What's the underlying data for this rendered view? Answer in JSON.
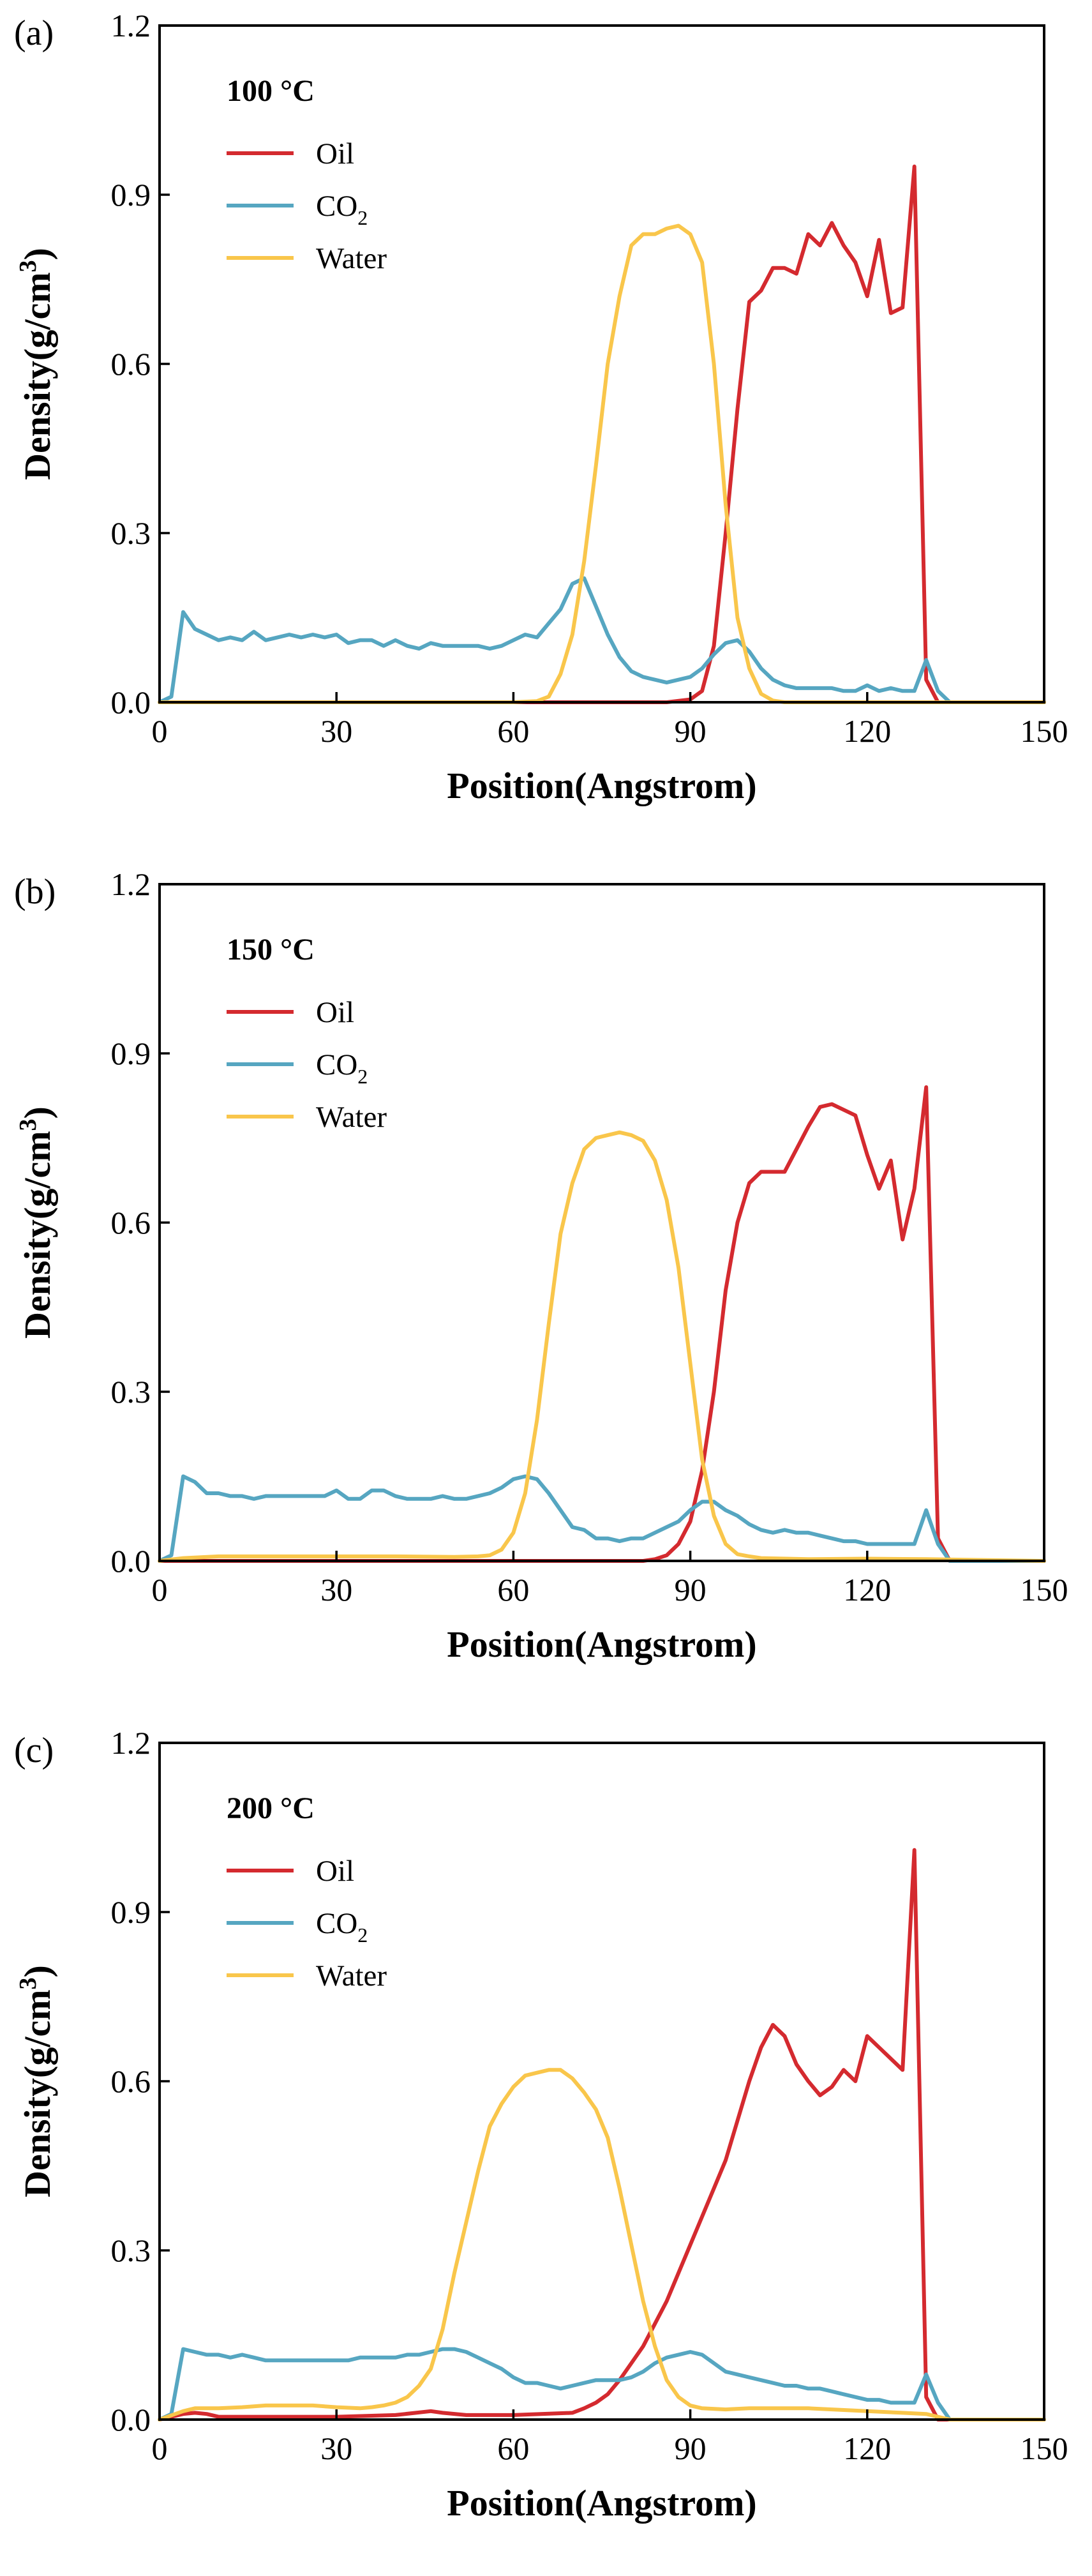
{
  "chart_data": [
    {
      "type": "line",
      "panel_label": "(a)",
      "annotation": "100 °C",
      "xlabel": "Position(Angstrom)",
      "ylabel_main": "Density(g/cm",
      "ylabel_sup": "3",
      "ylabel_close": ")",
      "xlim": [
        0,
        150
      ],
      "ylim": [
        0,
        1.2
      ],
      "xticks": [
        0,
        30,
        60,
        90,
        120,
        150
      ],
      "xtick_labels": [
        "0",
        "30",
        "60",
        "90",
        "120",
        "150"
      ],
      "yticks": [
        0,
        0.3,
        0.6,
        0.9,
        1.2
      ],
      "ytick_labels": [
        "0.0",
        "0.3",
        "0.6",
        "0.9",
        "1.2"
      ],
      "legend": [
        {
          "name": "Oil",
          "label": "Oil",
          "label_sub": "",
          "color": "#d42a2f"
        },
        {
          "name": "CO2",
          "label": "CO",
          "label_sub": "2",
          "color": "#56a6c1"
        },
        {
          "name": "Water",
          "label": "Water",
          "label_sub": "",
          "color": "#f9c64b"
        }
      ],
      "series": [
        {
          "name": "Oil",
          "color": "#d42a2f",
          "x": [
            0,
            86,
            90,
            92,
            94,
            96,
            98,
            100,
            102,
            104,
            106,
            108,
            110,
            112,
            114,
            116,
            118,
            120,
            122,
            124,
            126,
            128,
            130,
            132,
            134,
            150
          ],
          "y": [
            0.0,
            0.0,
            0.005,
            0.02,
            0.1,
            0.3,
            0.52,
            0.71,
            0.73,
            0.77,
            0.77,
            0.76,
            0.83,
            0.81,
            0.85,
            0.81,
            0.78,
            0.72,
            0.82,
            0.69,
            0.7,
            0.95,
            0.04,
            0.0,
            0.0,
            0.0
          ]
        },
        {
          "name": "CO2",
          "color": "#56a6c1",
          "x": [
            0,
            2,
            4,
            6,
            8,
            10,
            12,
            14,
            16,
            18,
            20,
            22,
            24,
            26,
            28,
            30,
            32,
            34,
            36,
            38,
            40,
            42,
            44,
            46,
            48,
            50,
            52,
            54,
            56,
            58,
            60,
            62,
            64,
            66,
            68,
            70,
            72,
            74,
            76,
            78,
            80,
            82,
            84,
            86,
            88,
            90,
            92,
            94,
            96,
            98,
            100,
            102,
            104,
            106,
            108,
            110,
            112,
            114,
            116,
            118,
            120,
            122,
            124,
            126,
            128,
            130,
            132,
            134,
            136,
            150
          ],
          "y": [
            0.0,
            0.01,
            0.16,
            0.13,
            0.12,
            0.11,
            0.115,
            0.11,
            0.125,
            0.11,
            0.115,
            0.12,
            0.115,
            0.12,
            0.115,
            0.12,
            0.105,
            0.11,
            0.11,
            0.1,
            0.11,
            0.1,
            0.095,
            0.105,
            0.1,
            0.1,
            0.1,
            0.1,
            0.095,
            0.1,
            0.11,
            0.12,
            0.115,
            0.14,
            0.165,
            0.21,
            0.22,
            0.17,
            0.12,
            0.08,
            0.055,
            0.045,
            0.04,
            0.035,
            0.04,
            0.045,
            0.06,
            0.085,
            0.105,
            0.11,
            0.09,
            0.06,
            0.04,
            0.03,
            0.025,
            0.025,
            0.025,
            0.025,
            0.02,
            0.02,
            0.03,
            0.02,
            0.025,
            0.02,
            0.02,
            0.075,
            0.02,
            0.0,
            0.0,
            0.0
          ]
        },
        {
          "name": "Water",
          "color": "#f9c64b",
          "x": [
            0,
            60,
            64,
            66,
            68,
            70,
            72,
            74,
            76,
            78,
            80,
            82,
            84,
            86,
            88,
            90,
            92,
            94,
            96,
            98,
            100,
            102,
            104,
            106,
            150
          ],
          "y": [
            0.0,
            0.0,
            0.002,
            0.01,
            0.05,
            0.12,
            0.25,
            0.42,
            0.6,
            0.72,
            0.81,
            0.83,
            0.83,
            0.84,
            0.845,
            0.83,
            0.78,
            0.6,
            0.35,
            0.15,
            0.06,
            0.015,
            0.003,
            0.0,
            0.0
          ]
        }
      ]
    },
    {
      "type": "line",
      "panel_label": "(b)",
      "annotation": "150 °C",
      "xlabel": "Position(Angstrom)",
      "ylabel_main": "Density(g/cm",
      "ylabel_sup": "3",
      "ylabel_close": ")",
      "xlim": [
        0,
        150
      ],
      "ylim": [
        0,
        1.2
      ],
      "xticks": [
        0,
        30,
        60,
        90,
        120,
        150
      ],
      "xtick_labels": [
        "0",
        "30",
        "60",
        "90",
        "120",
        "150"
      ],
      "yticks": [
        0,
        0.3,
        0.6,
        0.9,
        1.2
      ],
      "ytick_labels": [
        "0.0",
        "0.3",
        "0.6",
        "0.9",
        "1.2"
      ],
      "legend": [
        {
          "name": "Oil",
          "label": "Oil",
          "label_sub": "",
          "color": "#d42a2f"
        },
        {
          "name": "CO2",
          "label": "CO",
          "label_sub": "2",
          "color": "#56a6c1"
        },
        {
          "name": "Water",
          "label": "Water",
          "label_sub": "",
          "color": "#f9c64b"
        }
      ],
      "series": [
        {
          "name": "Oil",
          "color": "#d42a2f",
          "x": [
            0,
            82,
            84,
            86,
            88,
            90,
            92,
            94,
            96,
            98,
            100,
            102,
            104,
            106,
            108,
            110,
            112,
            114,
            116,
            118,
            120,
            122,
            124,
            126,
            128,
            130,
            132,
            134,
            150
          ],
          "y": [
            0.0,
            0.0,
            0.003,
            0.01,
            0.03,
            0.07,
            0.16,
            0.3,
            0.48,
            0.6,
            0.67,
            0.69,
            0.69,
            0.69,
            0.73,
            0.77,
            0.805,
            0.81,
            0.8,
            0.79,
            0.72,
            0.66,
            0.71,
            0.57,
            0.66,
            0.84,
            0.04,
            0.0,
            0.0
          ]
        },
        {
          "name": "CO2",
          "color": "#56a6c1",
          "x": [
            0,
            2,
            4,
            6,
            8,
            10,
            12,
            14,
            16,
            18,
            20,
            22,
            24,
            26,
            28,
            30,
            32,
            34,
            36,
            38,
            40,
            42,
            44,
            46,
            48,
            50,
            52,
            54,
            56,
            58,
            60,
            62,
            64,
            66,
            68,
            70,
            72,
            74,
            76,
            78,
            80,
            82,
            84,
            86,
            88,
            90,
            92,
            94,
            96,
            98,
            100,
            102,
            104,
            106,
            108,
            110,
            112,
            114,
            116,
            118,
            120,
            122,
            124,
            126,
            128,
            130,
            132,
            134,
            136,
            150
          ],
          "y": [
            0.0,
            0.01,
            0.15,
            0.14,
            0.12,
            0.12,
            0.115,
            0.115,
            0.11,
            0.115,
            0.115,
            0.115,
            0.115,
            0.115,
            0.115,
            0.125,
            0.11,
            0.11,
            0.125,
            0.125,
            0.115,
            0.11,
            0.11,
            0.11,
            0.115,
            0.11,
            0.11,
            0.115,
            0.12,
            0.13,
            0.145,
            0.15,
            0.145,
            0.12,
            0.09,
            0.06,
            0.055,
            0.04,
            0.04,
            0.035,
            0.04,
            0.04,
            0.05,
            0.06,
            0.07,
            0.09,
            0.105,
            0.105,
            0.09,
            0.08,
            0.065,
            0.055,
            0.05,
            0.055,
            0.05,
            0.05,
            0.045,
            0.04,
            0.035,
            0.035,
            0.03,
            0.03,
            0.03,
            0.03,
            0.03,
            0.09,
            0.03,
            0.0,
            0.0,
            0.0
          ]
        },
        {
          "name": "Water",
          "color": "#f9c64b",
          "x": [
            0,
            4,
            10,
            20,
            30,
            40,
            50,
            54,
            56,
            58,
            60,
            62,
            64,
            66,
            68,
            70,
            72,
            74,
            76,
            78,
            80,
            82,
            84,
            86,
            88,
            90,
            92,
            94,
            96,
            98,
            100,
            102,
            110,
            120,
            130,
            150
          ],
          "y": [
            0.0,
            0.005,
            0.008,
            0.008,
            0.008,
            0.008,
            0.007,
            0.008,
            0.01,
            0.02,
            0.05,
            0.12,
            0.25,
            0.42,
            0.58,
            0.67,
            0.73,
            0.75,
            0.755,
            0.76,
            0.755,
            0.745,
            0.71,
            0.64,
            0.52,
            0.35,
            0.18,
            0.08,
            0.03,
            0.012,
            0.008,
            0.005,
            0.003,
            0.004,
            0.003,
            0.0
          ]
        }
      ]
    },
    {
      "type": "line",
      "panel_label": "(c)",
      "annotation": "200 °C",
      "xlabel": "Position(Angstrom)",
      "ylabel_main": "Density(g/cm",
      "ylabel_sup": "3",
      "ylabel_close": ")",
      "xlim": [
        0,
        150
      ],
      "ylim": [
        0,
        1.2
      ],
      "xticks": [
        0,
        30,
        60,
        90,
        120,
        150
      ],
      "xtick_labels": [
        "0",
        "30",
        "60",
        "90",
        "120",
        "150"
      ],
      "yticks": [
        0,
        0.3,
        0.6,
        0.9,
        1.2
      ],
      "ytick_labels": [
        "0.0",
        "0.3",
        "0.6",
        "0.9",
        "1.2"
      ],
      "legend": [
        {
          "name": "Oil",
          "label": "Oil",
          "label_sub": "",
          "color": "#d42a2f"
        },
        {
          "name": "CO2",
          "label": "CO",
          "label_sub": "2",
          "color": "#56a6c1"
        },
        {
          "name": "Water",
          "label": "Water",
          "label_sub": "",
          "color": "#f9c64b"
        }
      ],
      "series": [
        {
          "name": "Oil",
          "color": "#d42a2f",
          "x": [
            0,
            2,
            4,
            6,
            8,
            10,
            20,
            30,
            40,
            46,
            48,
            52,
            60,
            70,
            72,
            74,
            76,
            78,
            80,
            82,
            84,
            86,
            88,
            90,
            92,
            94,
            96,
            98,
            100,
            102,
            104,
            106,
            108,
            110,
            112,
            114,
            116,
            118,
            120,
            122,
            124,
            126,
            128,
            130,
            132,
            134,
            150
          ],
          "y": [
            0.0,
            0.005,
            0.01,
            0.012,
            0.01,
            0.005,
            0.005,
            0.005,
            0.008,
            0.015,
            0.012,
            0.008,
            0.008,
            0.012,
            0.02,
            0.03,
            0.045,
            0.07,
            0.1,
            0.13,
            0.17,
            0.21,
            0.26,
            0.31,
            0.36,
            0.41,
            0.46,
            0.53,
            0.6,
            0.66,
            0.7,
            0.68,
            0.63,
            0.6,
            0.575,
            0.59,
            0.62,
            0.6,
            0.68,
            0.66,
            0.64,
            0.62,
            1.01,
            0.04,
            0.0,
            0.0,
            0.0
          ]
        },
        {
          "name": "CO2",
          "color": "#56a6c1",
          "x": [
            0,
            2,
            4,
            6,
            8,
            10,
            12,
            14,
            16,
            18,
            20,
            22,
            24,
            26,
            28,
            30,
            32,
            34,
            36,
            38,
            40,
            42,
            44,
            46,
            48,
            50,
            52,
            54,
            56,
            58,
            60,
            62,
            64,
            66,
            68,
            70,
            72,
            74,
            76,
            78,
            80,
            82,
            84,
            86,
            88,
            90,
            92,
            94,
            96,
            98,
            100,
            102,
            104,
            106,
            108,
            110,
            112,
            114,
            116,
            118,
            120,
            122,
            124,
            126,
            128,
            130,
            132,
            134,
            136,
            150
          ],
          "y": [
            0.0,
            0.01,
            0.125,
            0.12,
            0.115,
            0.115,
            0.11,
            0.115,
            0.11,
            0.105,
            0.105,
            0.105,
            0.105,
            0.105,
            0.105,
            0.105,
            0.105,
            0.11,
            0.11,
            0.11,
            0.11,
            0.115,
            0.115,
            0.12,
            0.125,
            0.125,
            0.12,
            0.11,
            0.1,
            0.09,
            0.075,
            0.065,
            0.065,
            0.06,
            0.055,
            0.06,
            0.065,
            0.07,
            0.07,
            0.07,
            0.075,
            0.085,
            0.1,
            0.11,
            0.115,
            0.12,
            0.115,
            0.1,
            0.085,
            0.08,
            0.075,
            0.07,
            0.065,
            0.06,
            0.06,
            0.055,
            0.055,
            0.05,
            0.045,
            0.04,
            0.035,
            0.035,
            0.03,
            0.03,
            0.03,
            0.08,
            0.03,
            0.0,
            0.0,
            0.0
          ]
        },
        {
          "name": "Water",
          "color": "#f9c64b",
          "x": [
            0,
            4,
            6,
            10,
            14,
            18,
            22,
            26,
            30,
            34,
            36,
            38,
            40,
            42,
            44,
            46,
            48,
            50,
            52,
            54,
            56,
            58,
            60,
            62,
            64,
            66,
            68,
            70,
            72,
            74,
            76,
            78,
            80,
            82,
            84,
            86,
            88,
            90,
            92,
            96,
            100,
            110,
            120,
            126,
            130,
            134,
            150
          ],
          "y": [
            0.0,
            0.015,
            0.02,
            0.02,
            0.022,
            0.025,
            0.025,
            0.025,
            0.022,
            0.02,
            0.022,
            0.025,
            0.03,
            0.04,
            0.06,
            0.09,
            0.16,
            0.26,
            0.35,
            0.44,
            0.52,
            0.56,
            0.59,
            0.61,
            0.615,
            0.62,
            0.62,
            0.605,
            0.58,
            0.55,
            0.5,
            0.41,
            0.31,
            0.21,
            0.13,
            0.07,
            0.04,
            0.025,
            0.02,
            0.018,
            0.02,
            0.02,
            0.015,
            0.012,
            0.01,
            0.0,
            0.0
          ]
        }
      ]
    }
  ]
}
